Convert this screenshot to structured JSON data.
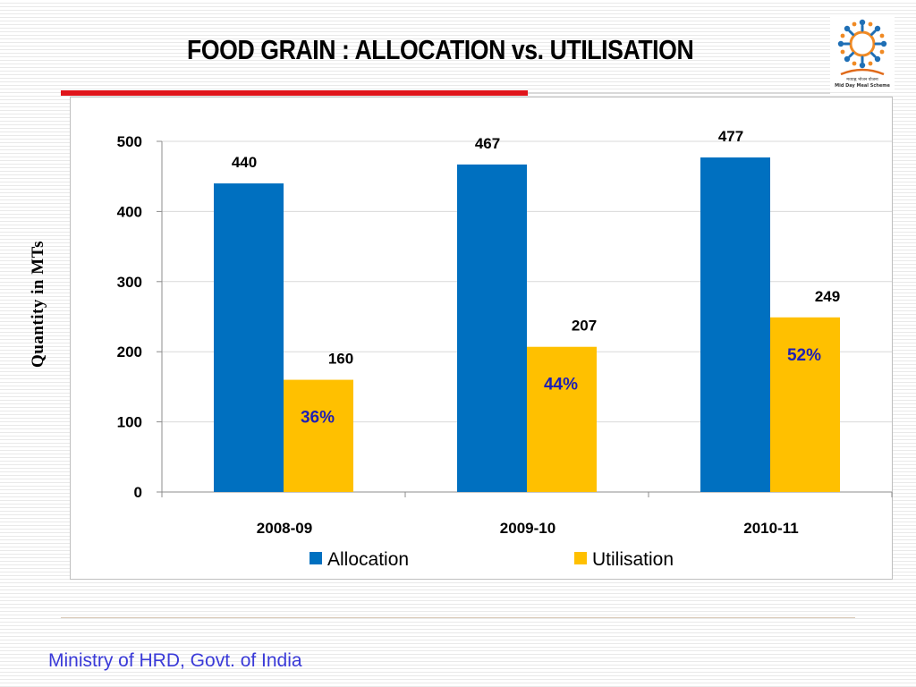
{
  "slide": {
    "title": "FOOD GRAIN : ALLOCATION vs. UTILISATION",
    "footer": "Ministry of HRD, Govt. of India",
    "logo_icon": "mid-day-meal-scheme-logo",
    "logo_text_hindi": "मध्याह्न भोजन योजना",
    "logo_text_english": "Mid Day Meal Scheme"
  },
  "chart_data": {
    "type": "bar",
    "title": "",
    "xlabel": "",
    "ylabel": "Quantity in MTs",
    "categories": [
      "2008-09",
      "2009-10",
      "2010-11"
    ],
    "series": [
      {
        "name": "Allocation",
        "color": "#0070c0",
        "values": [
          440,
          467,
          477
        ],
        "labels": [
          "440",
          "467",
          "477"
        ]
      },
      {
        "name": "Utilisation",
        "color": "#ffc000",
        "values": [
          160,
          207,
          249
        ],
        "labels": [
          "160",
          "207",
          "249"
        ]
      }
    ],
    "percent_labels": [
      "36%",
      "44%",
      "52%"
    ],
    "percent_label_color": "#1f1fb4",
    "ylim": [
      0,
      500
    ],
    "yticks": [
      0,
      100,
      200,
      300,
      400,
      500
    ],
    "grid": true,
    "legend": "bottom"
  }
}
